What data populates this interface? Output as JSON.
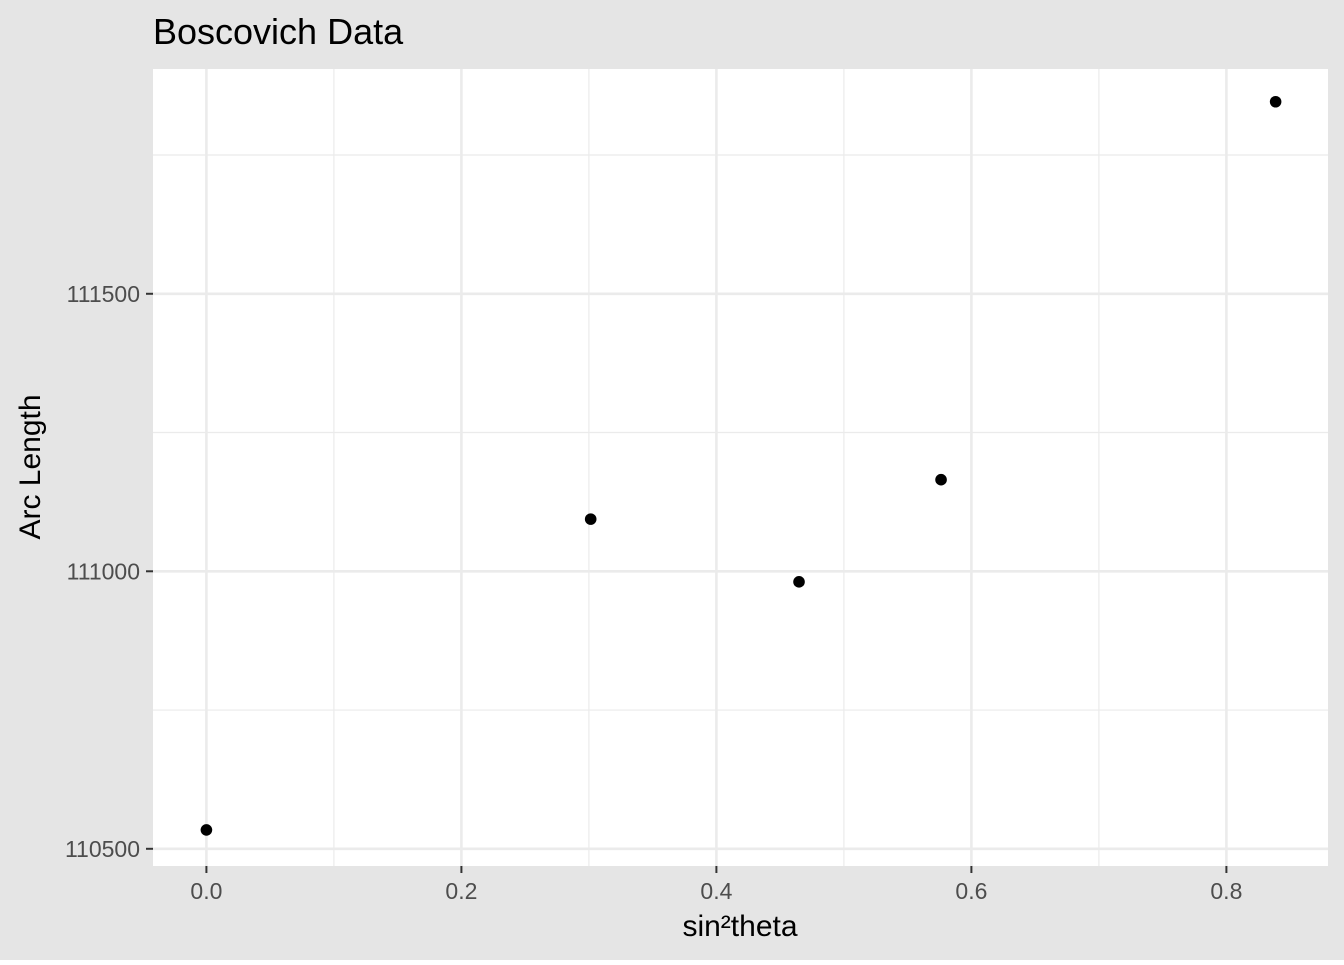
{
  "chart_data": {
    "type": "scatter",
    "title": "Boscovich Data",
    "xlabel": "sin²theta",
    "ylabel": "Arc Length",
    "xlim": [
      -0.04189,
      0.87969
    ],
    "ylim": [
      110469,
      111905
    ],
    "x_ticks": [
      0.0,
      0.2,
      0.4,
      0.6,
      0.8
    ],
    "x_tick_labels": [
      "0.0",
      "0.2",
      "0.4",
      "0.6",
      "0.8"
    ],
    "x_minor_ticks": [
      0.1,
      0.3,
      0.5,
      0.7
    ],
    "y_ticks": [
      110500,
      111000,
      111500
    ],
    "y_tick_labels": [
      "110500",
      "111000",
      "111500"
    ],
    "y_minor_ticks": [
      110750,
      111250,
      111750
    ],
    "grid": true,
    "legend": "none",
    "series": [
      {
        "points": [
          {
            "x": 0.0,
            "y": 110534
          },
          {
            "x": 0.3014,
            "y": 111094
          },
          {
            "x": 0.4648,
            "y": 110981
          },
          {
            "x": 0.5762,
            "y": 111165
          },
          {
            "x": 0.8386,
            "y": 111846
          }
        ]
      }
    ]
  },
  "colors": {
    "background": "#e5e5e5",
    "panel": "#ffffff",
    "grid": "#ebebeb",
    "point": "#000000",
    "tick_label": "#4d4d4d",
    "axis_tick": "#333333"
  }
}
